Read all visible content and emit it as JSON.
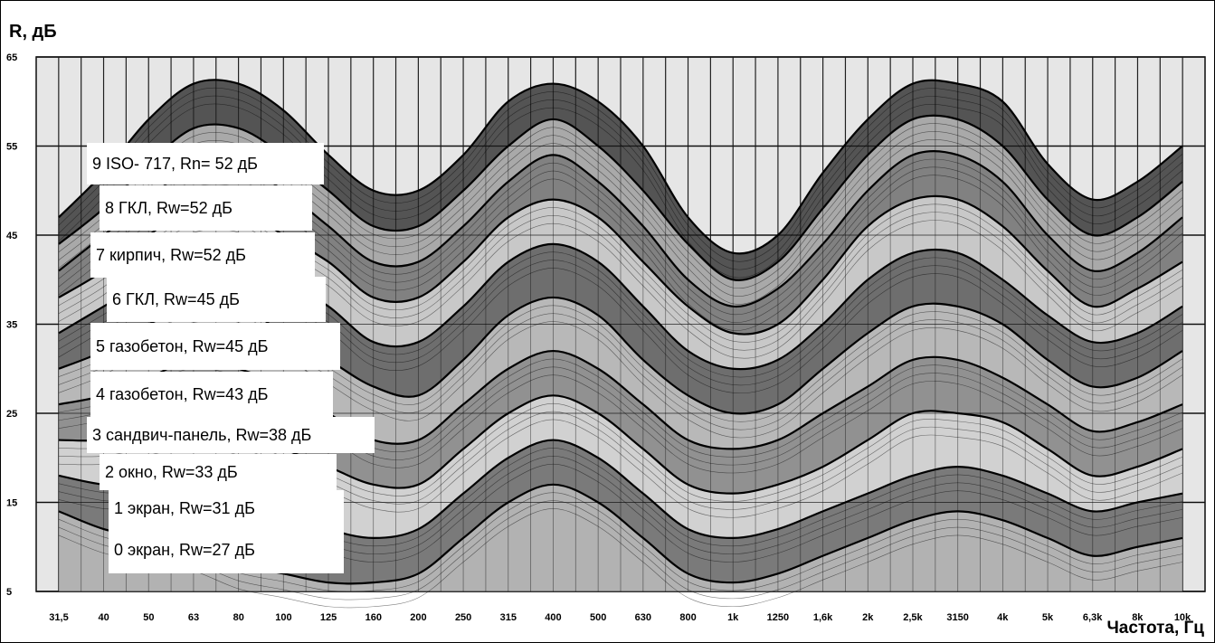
{
  "chart_data": {
    "type": "line",
    "xlabel": "Частота, Гц",
    "ylabel": "R, дБ",
    "yticks": [
      "5",
      "15",
      "25",
      "35",
      "45",
      "55",
      "65"
    ],
    "ylim": [
      5,
      65
    ],
    "categories": [
      "31,5",
      "40",
      "50",
      "63",
      "80",
      "100",
      "125",
      "160",
      "200",
      "250",
      "315",
      "400",
      "500",
      "630",
      "800",
      "1k",
      "1250",
      "1,6k",
      "2k",
      "2,5k",
      "3150",
      "4k",
      "5k",
      "6,3k",
      "8k",
      "10k"
    ],
    "grid": true,
    "legend_position": "left",
    "series": [
      {
        "name": "9  ISO- 717, Rn= 52 дБ",
        "values": [
          47,
          52,
          58,
          62,
          62,
          59,
          54,
          50,
          50,
          54,
          60,
          62,
          60,
          55,
          47,
          43,
          45,
          52,
          58,
          62,
          62,
          60,
          53,
          49,
          51,
          55
        ]
      },
      {
        "name": "8 ГКЛ, Rw=52 дБ",
        "values": [
          44,
          48,
          53,
          57,
          57,
          54,
          50,
          46,
          46,
          50,
          55,
          58,
          55,
          50,
          44,
          40,
          42,
          48,
          54,
          58,
          58,
          55,
          49,
          45,
          47,
          51
        ]
      },
      {
        "name": "7 кирпич, Rw=52 дБ",
        "values": [
          41,
          45,
          49,
          53,
          53,
          50,
          46,
          42,
          42,
          46,
          51,
          54,
          51,
          46,
          40,
          37,
          39,
          44,
          50,
          54,
          54,
          51,
          45,
          41,
          43,
          47
        ]
      },
      {
        "name": "6 ГКЛ, Rw=45 дБ",
        "values": [
          38,
          41,
          45,
          48,
          48,
          45,
          42,
          38,
          38,
          42,
          47,
          49,
          47,
          42,
          37,
          34,
          35,
          40,
          46,
          49,
          49,
          46,
          41,
          37,
          39,
          42
        ]
      },
      {
        "name": "5 газобетон, Rw=45 дБ",
        "values": [
          34,
          37,
          40,
          43,
          43,
          40,
          37,
          33,
          33,
          37,
          42,
          44,
          42,
          37,
          32,
          30,
          31,
          35,
          40,
          43,
          43,
          40,
          36,
          33,
          34,
          37
        ]
      },
      {
        "name": "4 газобетон, Rw=43 дБ",
        "values": [
          30,
          32,
          35,
          37,
          37,
          34,
          31,
          28,
          27,
          31,
          36,
          38,
          36,
          31,
          27,
          25,
          26,
          30,
          34,
          37,
          37,
          35,
          31,
          28,
          29,
          32
        ]
      },
      {
        "name": "3 сандвич-панель, Rw=38 дБ",
        "values": [
          26,
          27,
          29,
          31,
          30,
          28,
          25,
          22,
          22,
          26,
          30,
          32,
          30,
          26,
          22,
          21,
          22,
          25,
          28,
          31,
          31,
          29,
          26,
          23,
          24,
          26
        ]
      },
      {
        "name": "2 окно, Rw=33 дБ",
        "values": [
          22,
          22,
          23,
          24,
          23,
          21,
          19,
          17,
          17,
          21,
          25,
          27,
          25,
          21,
          17,
          16,
          17,
          19,
          22,
          25,
          25,
          24,
          21,
          18,
          19,
          21
        ]
      },
      {
        "name": "1 экран, Rw=31 дБ",
        "values": [
          18,
          17,
          17,
          17,
          16,
          14,
          12,
          11,
          12,
          16,
          20,
          22,
          20,
          16,
          12,
          11,
          12,
          14,
          16,
          18,
          19,
          18,
          16,
          14,
          15,
          16
        ]
      },
      {
        "name": "0 экран, Rw=27 дБ",
        "values": [
          14,
          12,
          11,
          10,
          8,
          7,
          6,
          6,
          7,
          11,
          15,
          17,
          15,
          11,
          7,
          6,
          7,
          9,
          11,
          13,
          14,
          13,
          11,
          9,
          10,
          11
        ]
      }
    ]
  }
}
